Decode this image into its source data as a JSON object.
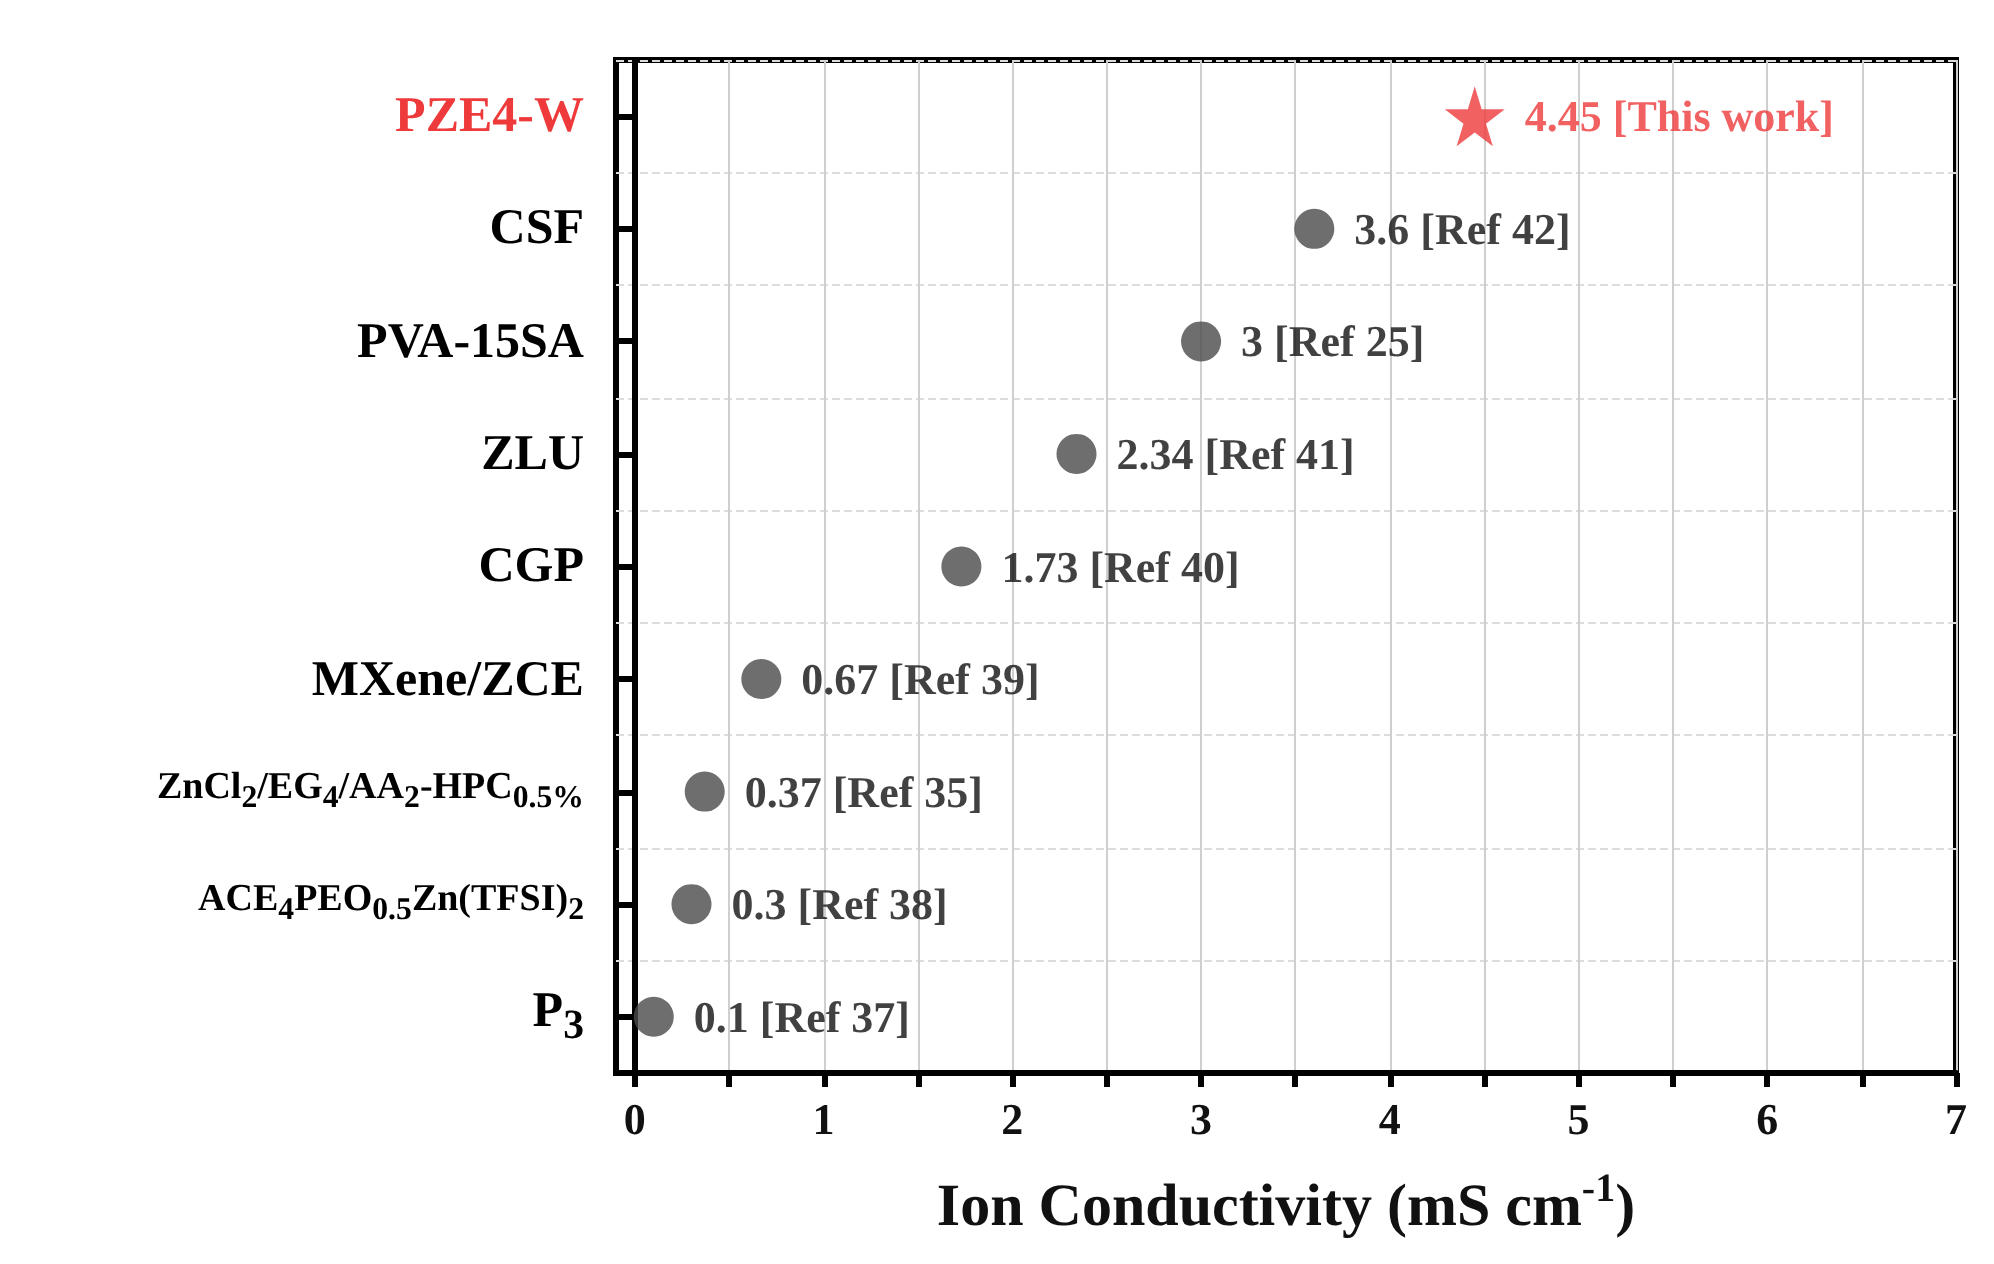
{
  "chart_data": {
    "type": "scatter",
    "orientation": "horizontal",
    "xlabel": "Ion Conductivity (mS cm$^{-1}$)",
    "categories": [
      "PZE4-W",
      "CSF",
      "PVA-15SA",
      "ZLU",
      "CGP",
      "MXene/ZCE",
      "ZnCl$_{2}$/EG$_{4}$/AA$_{2}$-HPC$_{0.5%}$",
      "ACE$_{4}$PEO$_{0.5}$Zn(TFSI)$_{2}$",
      "P$_{3}$"
    ],
    "series": [
      {
        "color": "#ee3a3a",
        "marker": "star",
        "values": [
          4.45,
          null,
          null,
          null,
          null,
          null,
          null,
          null,
          null
        ],
        "value_labels": [
          "4.45 [This work]",
          null,
          null,
          null,
          null,
          null,
          null,
          null,
          null
        ]
      },
      {
        "color": "#4a4a4a",
        "marker": "circle",
        "values": [
          null,
          3.6,
          3,
          2.34,
          1.73,
          0.67,
          0.37,
          0.3,
          0.1
        ],
        "value_labels": [
          null,
          "3.6 [Ref 42]",
          "3 [Ref 25]",
          "2.34 [Ref 41]",
          "1.73 [Ref 40]",
          "0.67 [Ref 39]",
          "0.37 [Ref 35]",
          "0.3 [Ref 38]",
          "0.1 [Ref 37]"
        ]
      }
    ],
    "xlim": [
      -0.1,
      7
    ],
    "xticks": [
      0,
      {
        "value": 0.5,
        "label": null
      },
      1,
      {
        "value": 1.5,
        "label": null
      },
      2,
      {
        "value": 2.5,
        "label": null
      },
      3,
      {
        "value": 3.5,
        "label": null
      },
      4,
      {
        "value": 4.5,
        "label": null
      },
      5,
      {
        "value": 5.5,
        "label": null
      },
      6,
      {
        "value": 6.5,
        "label": null
      },
      7
    ],
    "grid": true
  }
}
